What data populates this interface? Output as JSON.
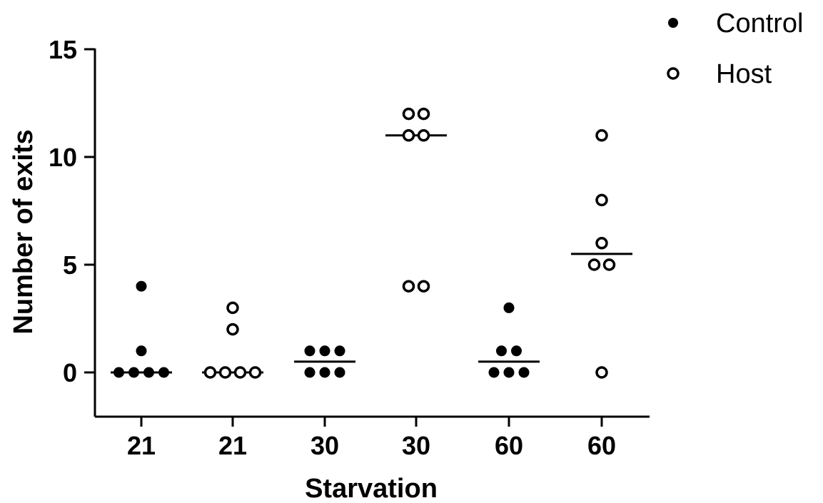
{
  "chart_data": {
    "type": "scatter",
    "xlabel": "Starvation",
    "ylabel": "Number of exits",
    "ylim": [
      -2,
      15
    ],
    "yticks": [
      0,
      5,
      10,
      15
    ],
    "categories": [
      "21",
      "21",
      "30",
      "30",
      "60",
      "60"
    ],
    "grid": false,
    "legend": {
      "position": "top-right"
    },
    "series": [
      {
        "name": "Control",
        "marker": "filled-circle",
        "color": "#000000"
      },
      {
        "name": "Host",
        "marker": "open-circle",
        "color": "#000000"
      }
    ],
    "groups": [
      {
        "category": "21",
        "series": "Control",
        "values": [
          0,
          0,
          0,
          0,
          1,
          4
        ],
        "median": 0
      },
      {
        "category": "21",
        "series": "Host",
        "values": [
          0,
          0,
          0,
          0,
          2,
          3
        ],
        "median": 0
      },
      {
        "category": "30",
        "series": "Control",
        "values": [
          0,
          0,
          0,
          1,
          1,
          1
        ],
        "median": 0.5
      },
      {
        "category": "30",
        "series": "Host",
        "values": [
          4,
          4,
          11,
          11,
          12,
          12
        ],
        "median": 11
      },
      {
        "category": "60",
        "series": "Control",
        "values": [
          0,
          0,
          0,
          1,
          1,
          3
        ],
        "median": 0.5
      },
      {
        "category": "60",
        "series": "Host",
        "values": [
          0,
          5,
          5,
          6,
          8,
          11
        ],
        "median": 5.5
      }
    ]
  }
}
